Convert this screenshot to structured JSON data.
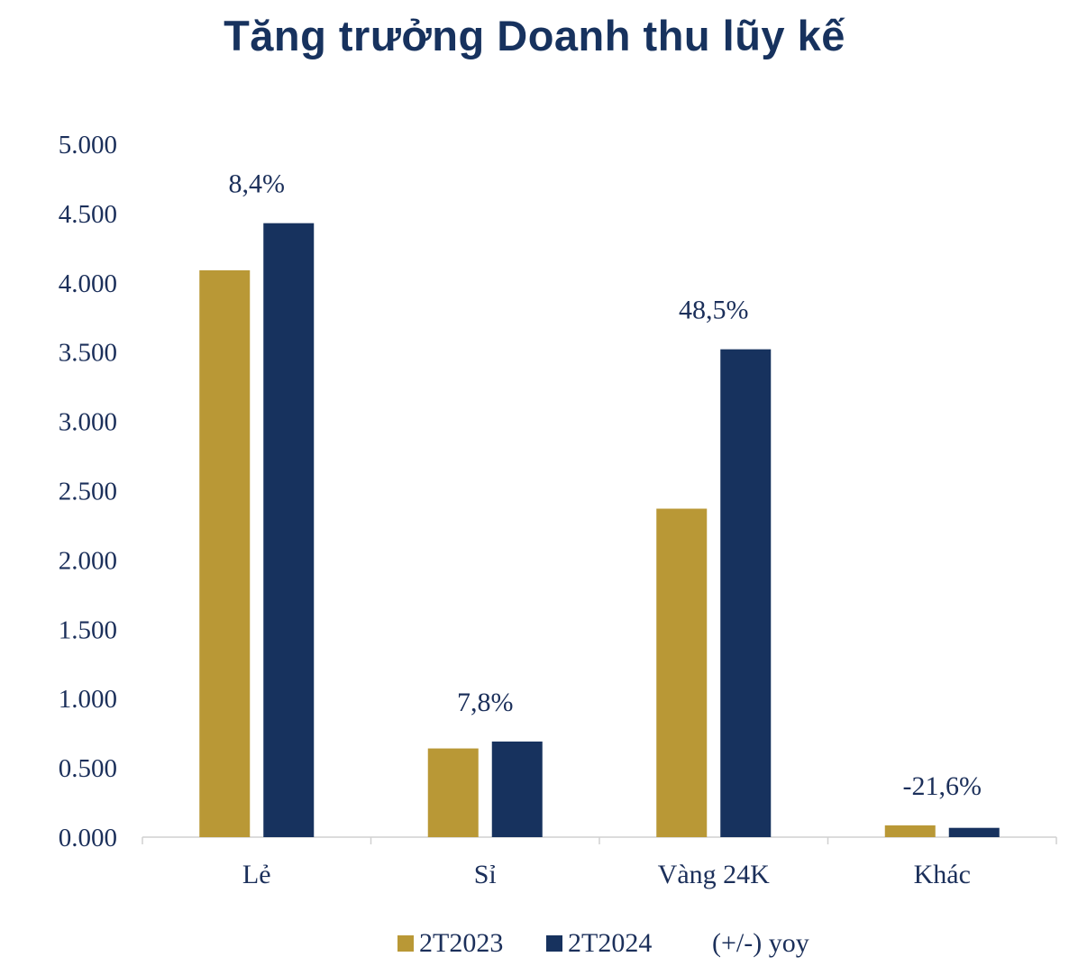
{
  "chart_data": {
    "type": "bar",
    "title": "Tăng trưởng Doanh thu lũy kế",
    "categories": [
      "Lẻ",
      "Sỉ",
      "Vàng 24K",
      "Khác"
    ],
    "series": [
      {
        "name": "2T2023",
        "color": "#b99836",
        "values": [
          4090,
          640,
          2370,
          85
        ]
      },
      {
        "name": "2T2024",
        "color": "#17325e",
        "values": [
          4430,
          690,
          3520,
          67
        ]
      }
    ],
    "annotations": [
      "8,4%",
      "7,8%",
      "48,5%",
      "-21,6%"
    ],
    "annotation_legend": "(+/-) yoy",
    "ylim": [
      0,
      5000
    ],
    "yticks": [
      0,
      500,
      1000,
      1500,
      2000,
      2500,
      3000,
      3500,
      4000,
      4500,
      5000
    ],
    "ytick_labels": [
      "0.000",
      "0.500",
      "1.000",
      "1.500",
      "2.000",
      "2.500",
      "3.000",
      "3.500",
      "4.000",
      "4.500",
      "5.000"
    ],
    "grid": false,
    "legend_position": "bottom"
  }
}
